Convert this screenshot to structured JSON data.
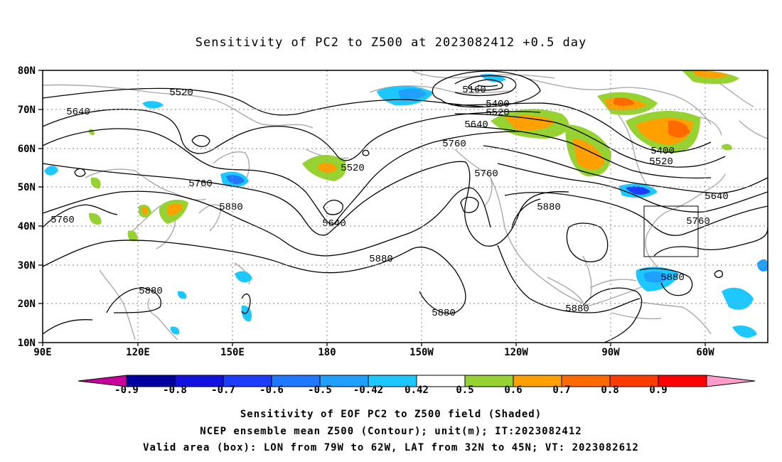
{
  "title": "Sensitivity of PC2 to Z500 at 2023082412 +0.5 day",
  "axes": {
    "lat_labels": [
      "80N",
      "70N",
      "60N",
      "50N",
      "40N",
      "30N",
      "20N",
      "10N"
    ],
    "lon_labels": [
      "90E",
      "120E",
      "150E",
      "180",
      "150W",
      "120W",
      "90W",
      "60W"
    ]
  },
  "contour_labels": [
    "5160",
    "5400",
    "5520",
    "5640",
    "5760",
    "5880",
    "5400",
    "5520",
    "5640",
    "5760",
    "5880",
    "5520",
    "5640",
    "5760",
    "5880",
    "5520",
    "5640",
    "5760",
    "5880",
    "5880",
    "5880",
    "5760",
    "5880"
  ],
  "colorbar": {
    "labels": [
      "-0.9",
      "-0.8",
      "-0.7",
      "-0.6",
      "-0.5",
      "-0.42",
      "0.42",
      "0.5",
      "0.6",
      "0.7",
      "0.8",
      "0.9"
    ],
    "colors": [
      "#0000a0",
      "#1010e0",
      "#1c3cff",
      "#1f78ff",
      "#1fa0ff",
      "#1cc8ff",
      "#ffffff",
      "#96d232",
      "#ffa000",
      "#ff6a00",
      "#ff3c00",
      "#ff0000"
    ],
    "low_tip_color": "#c8009c",
    "high_tip_color": "#ff9cc8"
  },
  "caption": {
    "line1": "Sensitivity of EOF PC2 to Z500 field (Shaded)",
    "line2": "NCEP ensemble mean Z500 (Contour); unit(m); IT:2023082412",
    "line3": "Valid area (box): LON from 79W to 62W, LAT from 32N to 45N; VT: 2023082612"
  }
}
